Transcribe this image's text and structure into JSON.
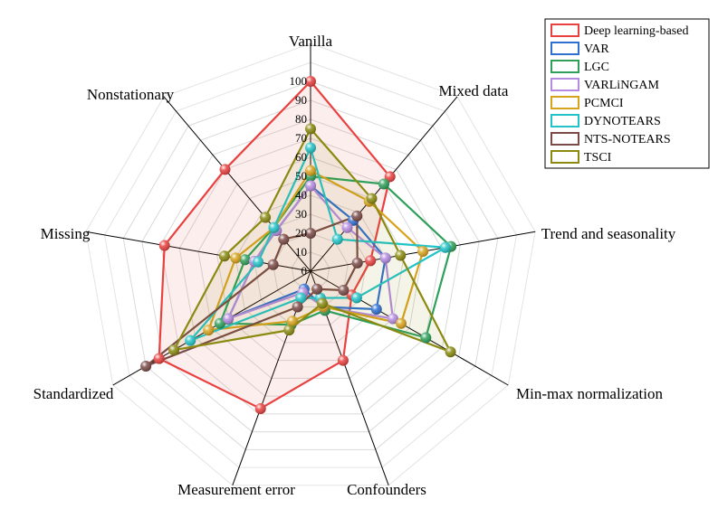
{
  "chart_data": {
    "type": "radar",
    "axes": [
      "Vanilla",
      "Mixed data",
      "Trend and seasonality",
      "Min-max normalization",
      "Confounders",
      "Measurement error",
      "Standardized",
      "Missing",
      "Nonstationary"
    ],
    "r_ticks": [
      0,
      10,
      20,
      30,
      40,
      50,
      60,
      70,
      80,
      90,
      100
    ],
    "r_range": [
      0,
      100
    ],
    "grid": true,
    "legend_position": "top-right",
    "series": [
      {
        "name": "Deep learning-based",
        "color": "#e8413f",
        "filled": true,
        "values": [
          100,
          65,
          32,
          25,
          50,
          77,
          92,
          78,
          70
        ]
      },
      {
        "name": "VAR",
        "color": "#2f6fd0",
        "filled": false,
        "values": [
          45,
          35,
          40,
          40,
          20,
          10,
          50,
          30,
          28
        ]
      },
      {
        "name": "LGC",
        "color": "#2ea05a",
        "filled": false,
        "values": [
          50,
          60,
          75,
          70,
          22,
          30,
          55,
          35,
          30
        ]
      },
      {
        "name": "VARLiNGAM",
        "color": "#b58be0",
        "filled": false,
        "values": [
          45,
          30,
          40,
          50,
          20,
          12,
          50,
          30,
          28
        ]
      },
      {
        "name": "PCMCI",
        "color": "#d8a31c",
        "filled": false,
        "values": [
          53,
          48,
          60,
          55,
          20,
          28,
          62,
          40,
          30
        ]
      },
      {
        "name": "DYNOTEARS",
        "color": "#22c4c8",
        "filled": false,
        "values": [
          65,
          22,
          72,
          28,
          15,
          15,
          73,
          28,
          30
        ]
      },
      {
        "name": "NTS-NOTEARS",
        "color": "#7a4a46",
        "filled": false,
        "values": [
          20,
          38,
          25,
          20,
          10,
          20,
          100,
          20,
          22
        ]
      },
      {
        "name": "TSCI",
        "color": "#8a8a10",
        "filled": true,
        "values": [
          75,
          50,
          48,
          85,
          18,
          33,
          83,
          46,
          37
        ]
      }
    ]
  }
}
